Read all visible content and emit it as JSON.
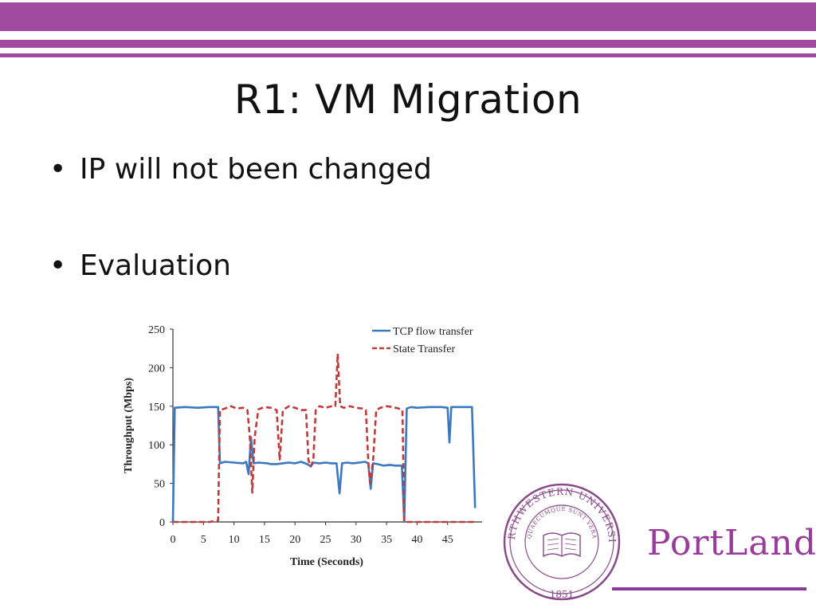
{
  "slide": {
    "title": "R1: VM Migration",
    "bullets": [
      "IP will not been changed",
      "Evaluation"
    ],
    "bullet_glyph": "•",
    "accent_color": "#a04aa0"
  },
  "logo": {
    "seal_text": "NORTHWESTERN UNIVERSITY",
    "seal_motto": "QUAECUMQUE SUNT VERA",
    "seal_year": "1851",
    "brand": "PortLand",
    "brand_color": "#9a3a9a"
  },
  "chart_data": {
    "type": "line",
    "title": "",
    "xlabel": "Time (Seconds)",
    "ylabel": "Throughput (Mbps)",
    "xlim": [
      0,
      50
    ],
    "ylim": [
      0,
      250
    ],
    "xticks": [
      0,
      5,
      10,
      15,
      20,
      25,
      30,
      35,
      40,
      45
    ],
    "yticks": [
      0,
      50,
      100,
      150,
      200,
      250
    ],
    "grid": false,
    "legend_position": "top-right",
    "series": [
      {
        "name": "TCP flow transfer",
        "color": "#3a78c0",
        "dash": "solid",
        "points": [
          [
            0,
            0
          ],
          [
            0.3,
            148
          ],
          [
            2,
            149
          ],
          [
            4,
            148
          ],
          [
            6,
            149
          ],
          [
            7.4,
            149
          ],
          [
            7.7,
            76
          ],
          [
            8.5,
            78
          ],
          [
            10,
            77
          ],
          [
            11.5,
            76
          ],
          [
            12,
            78
          ],
          [
            12.4,
            62
          ],
          [
            12.8,
            110
          ],
          [
            13.2,
            76
          ],
          [
            14,
            77
          ],
          [
            15.5,
            76
          ],
          [
            16,
            75
          ],
          [
            17,
            75
          ],
          [
            18,
            76
          ],
          [
            19,
            77
          ],
          [
            20,
            76
          ],
          [
            21,
            78
          ],
          [
            22,
            75
          ],
          [
            22.6,
            72
          ],
          [
            23,
            77
          ],
          [
            24,
            76
          ],
          [
            25,
            77
          ],
          [
            26,
            76
          ],
          [
            26.8,
            76
          ],
          [
            27.3,
            37
          ],
          [
            27.7,
            76
          ],
          [
            28.5,
            77
          ],
          [
            29.5,
            76
          ],
          [
            30.5,
            77
          ],
          [
            31.5,
            78
          ],
          [
            32,
            76
          ],
          [
            32.4,
            43
          ],
          [
            32.8,
            76
          ],
          [
            33.5,
            75
          ],
          [
            34.5,
            73
          ],
          [
            35.5,
            74
          ],
          [
            36.5,
            73
          ],
          [
            37.5,
            73
          ],
          [
            37.9,
            0
          ],
          [
            38.3,
            147
          ],
          [
            39,
            149
          ],
          [
            40,
            148
          ],
          [
            42,
            149
          ],
          [
            44,
            149
          ],
          [
            45,
            148
          ],
          [
            45.3,
            103
          ],
          [
            45.6,
            149
          ],
          [
            47,
            149
          ],
          [
            48,
            149
          ],
          [
            49,
            149
          ],
          [
            49.5,
            18
          ]
        ]
      },
      {
        "name": "State Transfer",
        "color": "#c03a3a",
        "dash": "dashed",
        "points": [
          [
            0,
            0
          ],
          [
            2,
            0
          ],
          [
            4,
            0
          ],
          [
            6,
            0
          ],
          [
            7.4,
            2
          ],
          [
            7.7,
            145
          ],
          [
            8.5,
            147
          ],
          [
            9.5,
            150
          ],
          [
            10.5,
            147
          ],
          [
            11.5,
            148
          ],
          [
            12.2,
            145
          ],
          [
            12.6,
            110
          ],
          [
            13,
            38
          ],
          [
            13.4,
            110
          ],
          [
            14,
            146
          ],
          [
            15,
            149
          ],
          [
            16,
            148
          ],
          [
            17,
            145
          ],
          [
            17.5,
            80
          ],
          [
            18,
            145
          ],
          [
            19,
            150
          ],
          [
            20,
            148
          ],
          [
            21,
            145
          ],
          [
            21.8,
            145
          ],
          [
            22.2,
            80
          ],
          [
            22.6,
            72
          ],
          [
            23,
            80
          ],
          [
            23.4,
            145
          ],
          [
            24,
            150
          ],
          [
            25,
            148
          ],
          [
            26,
            150
          ],
          [
            26.6,
            150
          ],
          [
            27,
            218
          ],
          [
            27.4,
            150
          ],
          [
            28,
            148
          ],
          [
            29,
            150
          ],
          [
            30,
            148
          ],
          [
            31,
            147
          ],
          [
            31.6,
            145
          ],
          [
            32,
            80
          ],
          [
            32.3,
            50
          ],
          [
            32.8,
            80
          ],
          [
            33.3,
            145
          ],
          [
            34,
            148
          ],
          [
            35,
            150
          ],
          [
            36,
            149
          ],
          [
            37,
            147
          ],
          [
            37.6,
            145
          ],
          [
            37.9,
            0
          ],
          [
            39,
            0
          ],
          [
            42,
            0
          ],
          [
            45,
            0
          ],
          [
            48,
            0
          ],
          [
            49.5,
            0
          ]
        ]
      }
    ]
  }
}
